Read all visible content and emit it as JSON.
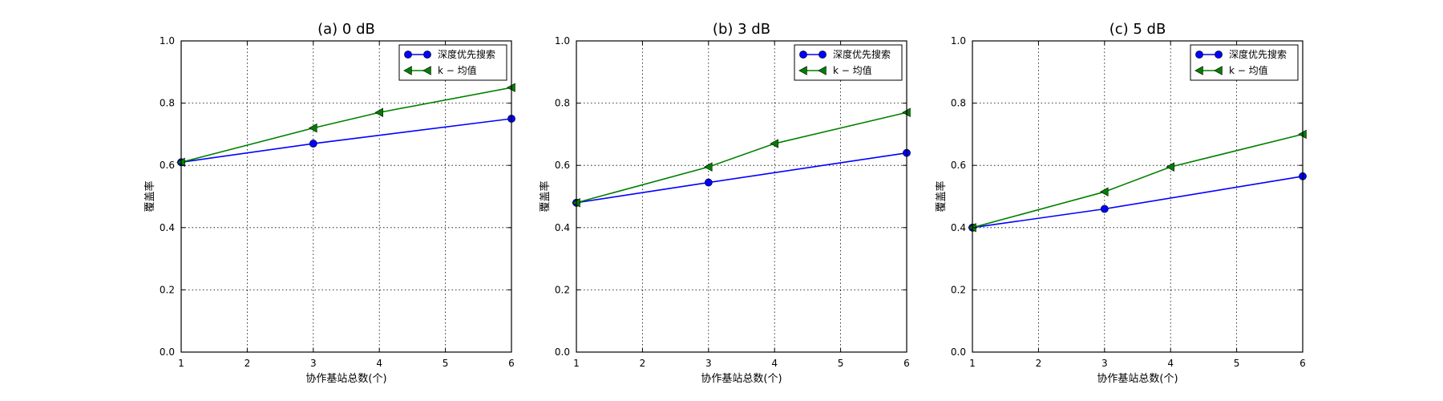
{
  "chart_data": [
    {
      "type": "line",
      "title": "(a) 0 dB",
      "xlabel": "协作基站总数(个)",
      "ylabel": "覆盖率",
      "xlim": [
        1,
        6
      ],
      "ylim": [
        0,
        1.0
      ],
      "xticks": [
        "1",
        "2",
        "3",
        "4",
        "5",
        "6"
      ],
      "yticks": [
        "0.0",
        "0.2",
        "0.4",
        "0.6",
        "0.8",
        "1.0"
      ],
      "grid": true,
      "legend_position": "top-right",
      "series": [
        {
          "name": "深度优先搜索",
          "color": "#0000ff",
          "marker": "circle",
          "x": [
            1,
            3,
            6
          ],
          "y": [
            0.61,
            0.67,
            0.75
          ]
        },
        {
          "name": "k − 均值",
          "color": "#008000",
          "marker": "triangle-left",
          "x": [
            1,
            3,
            4,
            6
          ],
          "y": [
            0.61,
            0.72,
            0.77,
            0.85
          ]
        }
      ]
    },
    {
      "type": "line",
      "title": "(b) 3 dB",
      "xlabel": "协作基站总数(个)",
      "ylabel": "覆盖率",
      "xlim": [
        1,
        6
      ],
      "ylim": [
        0,
        1.0
      ],
      "xticks": [
        "1",
        "2",
        "3",
        "4",
        "5",
        "6"
      ],
      "yticks": [
        "0.0",
        "0.2",
        "0.4",
        "0.6",
        "0.8",
        "1.0"
      ],
      "grid": true,
      "legend_position": "top-right",
      "series": [
        {
          "name": "深度优先搜索",
          "color": "#0000ff",
          "marker": "circle",
          "x": [
            1,
            3,
            6
          ],
          "y": [
            0.48,
            0.545,
            0.64
          ]
        },
        {
          "name": "k − 均值",
          "color": "#008000",
          "marker": "triangle-left",
          "x": [
            1,
            3,
            4,
            6
          ],
          "y": [
            0.48,
            0.595,
            0.67,
            0.77
          ]
        }
      ]
    },
    {
      "type": "line",
      "title": "(c) 5 dB",
      "xlabel": "协作基站总数(个)",
      "ylabel": "覆盖率",
      "xlim": [
        1,
        6
      ],
      "ylim": [
        0,
        1.0
      ],
      "xticks": [
        "1",
        "2",
        "3",
        "4",
        "5",
        "6"
      ],
      "yticks": [
        "0.0",
        "0.2",
        "0.4",
        "0.6",
        "0.8",
        "1.0"
      ],
      "grid": true,
      "legend_position": "top-right",
      "series": [
        {
          "name": "深度优先搜索",
          "color": "#0000ff",
          "marker": "circle",
          "x": [
            1,
            3,
            6
          ],
          "y": [
            0.4,
            0.46,
            0.565
          ]
        },
        {
          "name": "k − 均值",
          "color": "#008000",
          "marker": "triangle-left",
          "x": [
            1,
            3,
            4,
            6
          ],
          "y": [
            0.4,
            0.515,
            0.595,
            0.7
          ]
        }
      ]
    }
  ]
}
